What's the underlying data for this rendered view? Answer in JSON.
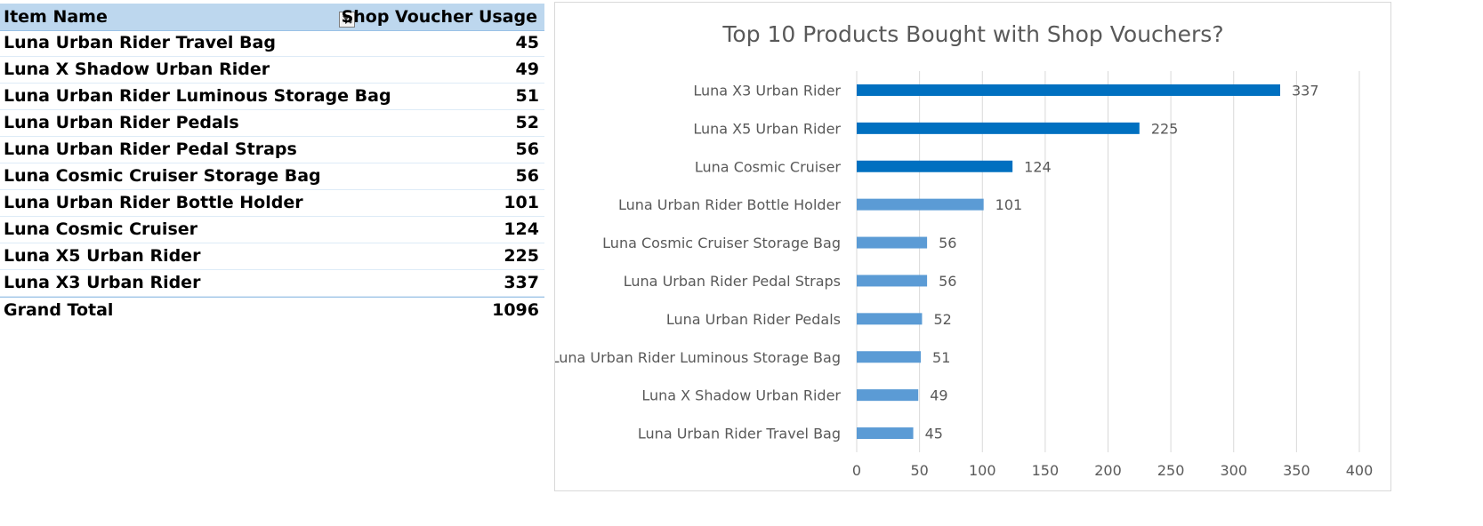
{
  "pivot_table": {
    "header": {
      "item_name": "Item Name",
      "usage": "Shop Voucher Usage",
      "filter_icon": "filter-sort-icon"
    },
    "rows": [
      {
        "item": "Luna Urban Rider Travel Bag",
        "usage": "45"
      },
      {
        "item": "Luna X Shadow Urban Rider",
        "usage": "49"
      },
      {
        "item": "Luna Urban Rider Luminous Storage Bag",
        "usage": "51"
      },
      {
        "item": "Luna Urban Rider Pedals",
        "usage": "52"
      },
      {
        "item": "Luna Urban Rider Pedal Straps",
        "usage": "56"
      },
      {
        "item": "Luna Cosmic Cruiser Storage Bag",
        "usage": "56"
      },
      {
        "item": "Luna Urban Rider Bottle Holder",
        "usage": "101"
      },
      {
        "item": "Luna Cosmic Cruiser",
        "usage": "124"
      },
      {
        "item": "Luna X5 Urban Rider",
        "usage": "225"
      },
      {
        "item": "Luna X3 Urban Rider",
        "usage": "337"
      }
    ],
    "total": {
      "label": "Grand Total",
      "usage": "1096"
    },
    "colors": {
      "header_bg": "#bdd7ee",
      "row_border": "#ddebf7"
    }
  },
  "chart_data": {
    "type": "bar",
    "orientation": "horizontal",
    "title": "Top 10 Products Bought with Shop Vouchers?",
    "categories": [
      "Luna X3 Urban Rider",
      "Luna X5 Urban Rider",
      "Luna Cosmic Cruiser",
      "Luna Urban Rider Bottle Holder",
      "Luna Cosmic Cruiser Storage Bag",
      "Luna Urban Rider Pedal Straps",
      "Luna Urban Rider Pedals",
      "Luna Urban Rider Luminous Storage Bag",
      "Luna X Shadow Urban Rider",
      "Luna Urban Rider Travel Bag"
    ],
    "values": [
      337,
      225,
      124,
      101,
      56,
      56,
      52,
      51,
      49,
      45
    ],
    "highlight_top": 3,
    "xlim": [
      0,
      400
    ],
    "xticks": [
      0,
      50,
      100,
      150,
      200,
      250,
      300,
      350,
      400
    ],
    "grid": "vertical",
    "data_labels": true,
    "legend": "none",
    "colors": {
      "highlight": "#0070c0",
      "normal": "#5b9bd5",
      "grid": "#d9d9d9",
      "text": "#595959"
    }
  }
}
